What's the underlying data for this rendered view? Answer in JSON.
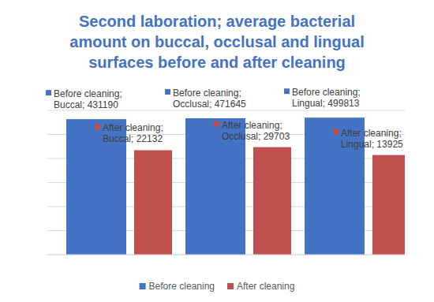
{
  "chart_data": {
    "type": "bar",
    "title": "Second laboration; average bacterial amount on buccal, occlusal and lingual surfaces before and after cleaning",
    "categories": [
      "Buccal",
      "Occlusal",
      "Lingual"
    ],
    "series": [
      {
        "name": "Before cleaning",
        "color": "#4472c4",
        "values": [
          431190,
          471645,
          499813
        ],
        "value_labels": [
          "Before cleaning; Buccal; 431190",
          "Before cleaning; Occlusal; 471645",
          "Before cleaning; Lingual; 499813"
        ]
      },
      {
        "name": "After cleaning",
        "color": "#c0504d",
        "values": [
          22132,
          29703,
          13925
        ],
        "value_labels": [
          "After cleaning; Buccal; 22132",
          "After cleaning; Occlusal; 29703",
          "After cleaning; Lingual; 13925"
        ]
      }
    ],
    "log": "y",
    "ylim": [
      1,
      1000000
    ],
    "yticks": [
      1,
      10,
      100,
      1000,
      10000,
      100000,
      1000000
    ],
    "grid": true,
    "tick_labels": false,
    "data_labels": true,
    "legend": "bottom"
  }
}
